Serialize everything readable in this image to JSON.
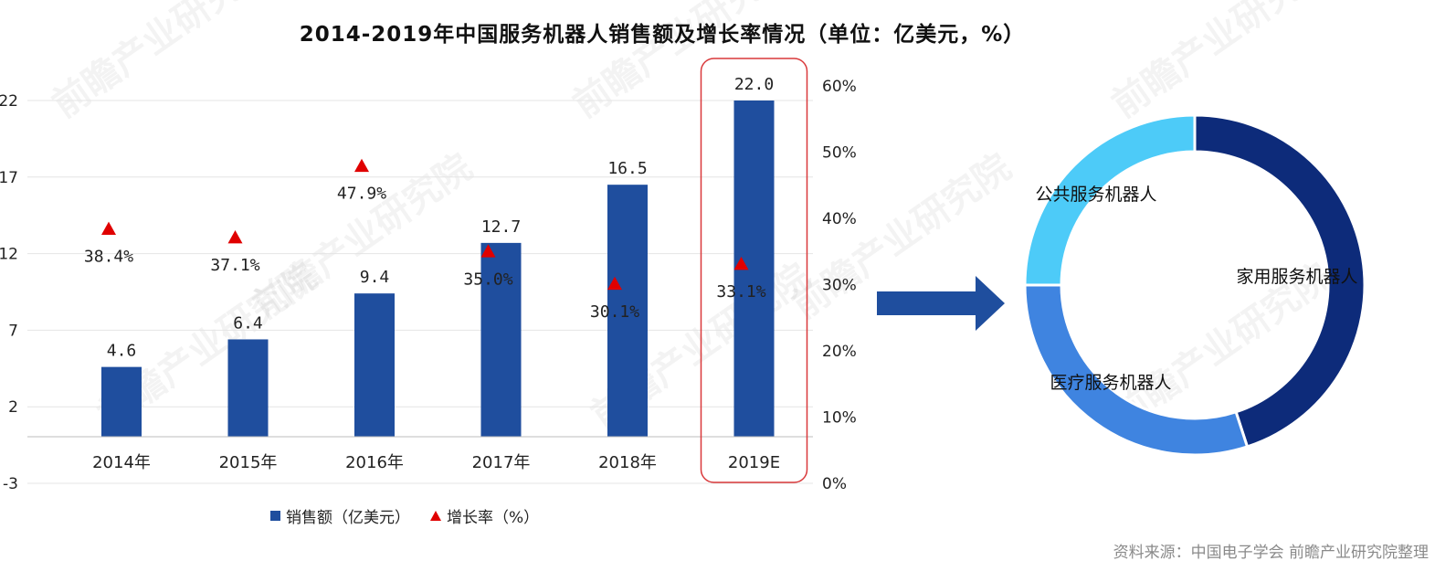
{
  "title": "2014-2019年中国服务机器人销售额及增长率情况（单位：亿美元，%）",
  "source": "资料来源：中国电子学会 前瞻产业研究院整理",
  "watermark": "前瞻产业研究院",
  "colors": {
    "bar": "#1F4E9E",
    "triangle": "#E00000",
    "highlight": "#D9383A",
    "arrow": "#1F4E9E",
    "donut_home": "#0D2B7A",
    "donut_medical": "#3F84E0",
    "donut_public": "#4DCBF8"
  },
  "chart_data": [
    {
      "type": "bar",
      "categories": [
        "2014年",
        "2015年",
        "2016年",
        "2017年",
        "2018年",
        "2019E"
      ],
      "series": [
        {
          "name": "销售额（亿美元）",
          "type": "bar",
          "axis": "left",
          "values": [
            4.6,
            6.4,
            9.4,
            12.7,
            16.5,
            22.0
          ],
          "labels": [
            "4.6",
            "6.4",
            "9.4",
            "12.7",
            "16.5",
            "22.0"
          ]
        },
        {
          "name": "增长率（%）",
          "type": "scatter",
          "marker": "triangle",
          "axis": "right",
          "values": [
            38.4,
            37.1,
            47.9,
            35.0,
            30.1,
            33.1
          ],
          "labels": [
            "38.4%",
            "37.1%",
            "47.9%",
            "35.0%",
            "30.1%",
            "33.1%"
          ]
        }
      ],
      "left_axis": {
        "ylim": [
          -3,
          22
        ],
        "ticks": [
          "22",
          "17",
          "12",
          "7",
          "2",
          "-3"
        ],
        "tick_values": [
          22,
          17,
          12,
          7,
          2,
          -3
        ]
      },
      "right_axis": {
        "ylim": [
          0,
          60
        ],
        "ticks": [
          "60%",
          "50%",
          "40%",
          "30%",
          "20%",
          "10%",
          "0%"
        ],
        "tick_values": [
          60,
          50,
          40,
          30,
          20,
          10,
          0
        ]
      },
      "highlight_category": "2019E",
      "grid": true,
      "legend_position": "bottom"
    },
    {
      "type": "pie",
      "style": "donut",
      "categories": [
        "家用服务机器人",
        "医疗服务机器人",
        "公共服务机器人"
      ],
      "values": [
        45,
        30,
        25
      ]
    }
  ]
}
